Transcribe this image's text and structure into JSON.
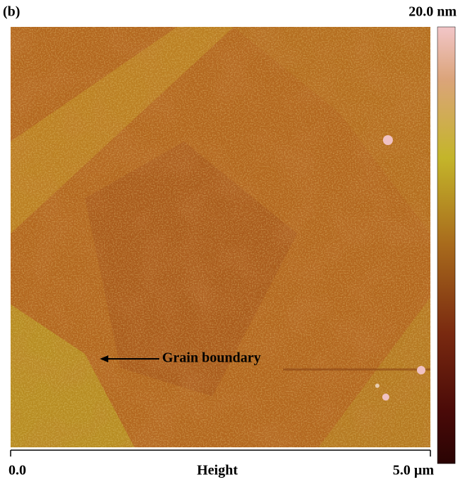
{
  "panel_label": "(b)",
  "scale_bar": {
    "max_label": "20.0 nm"
  },
  "x_axis": {
    "start_label": "0.0",
    "title": "Height",
    "end_label": "5.0 µm"
  },
  "annotation": "Grain boundary"
}
